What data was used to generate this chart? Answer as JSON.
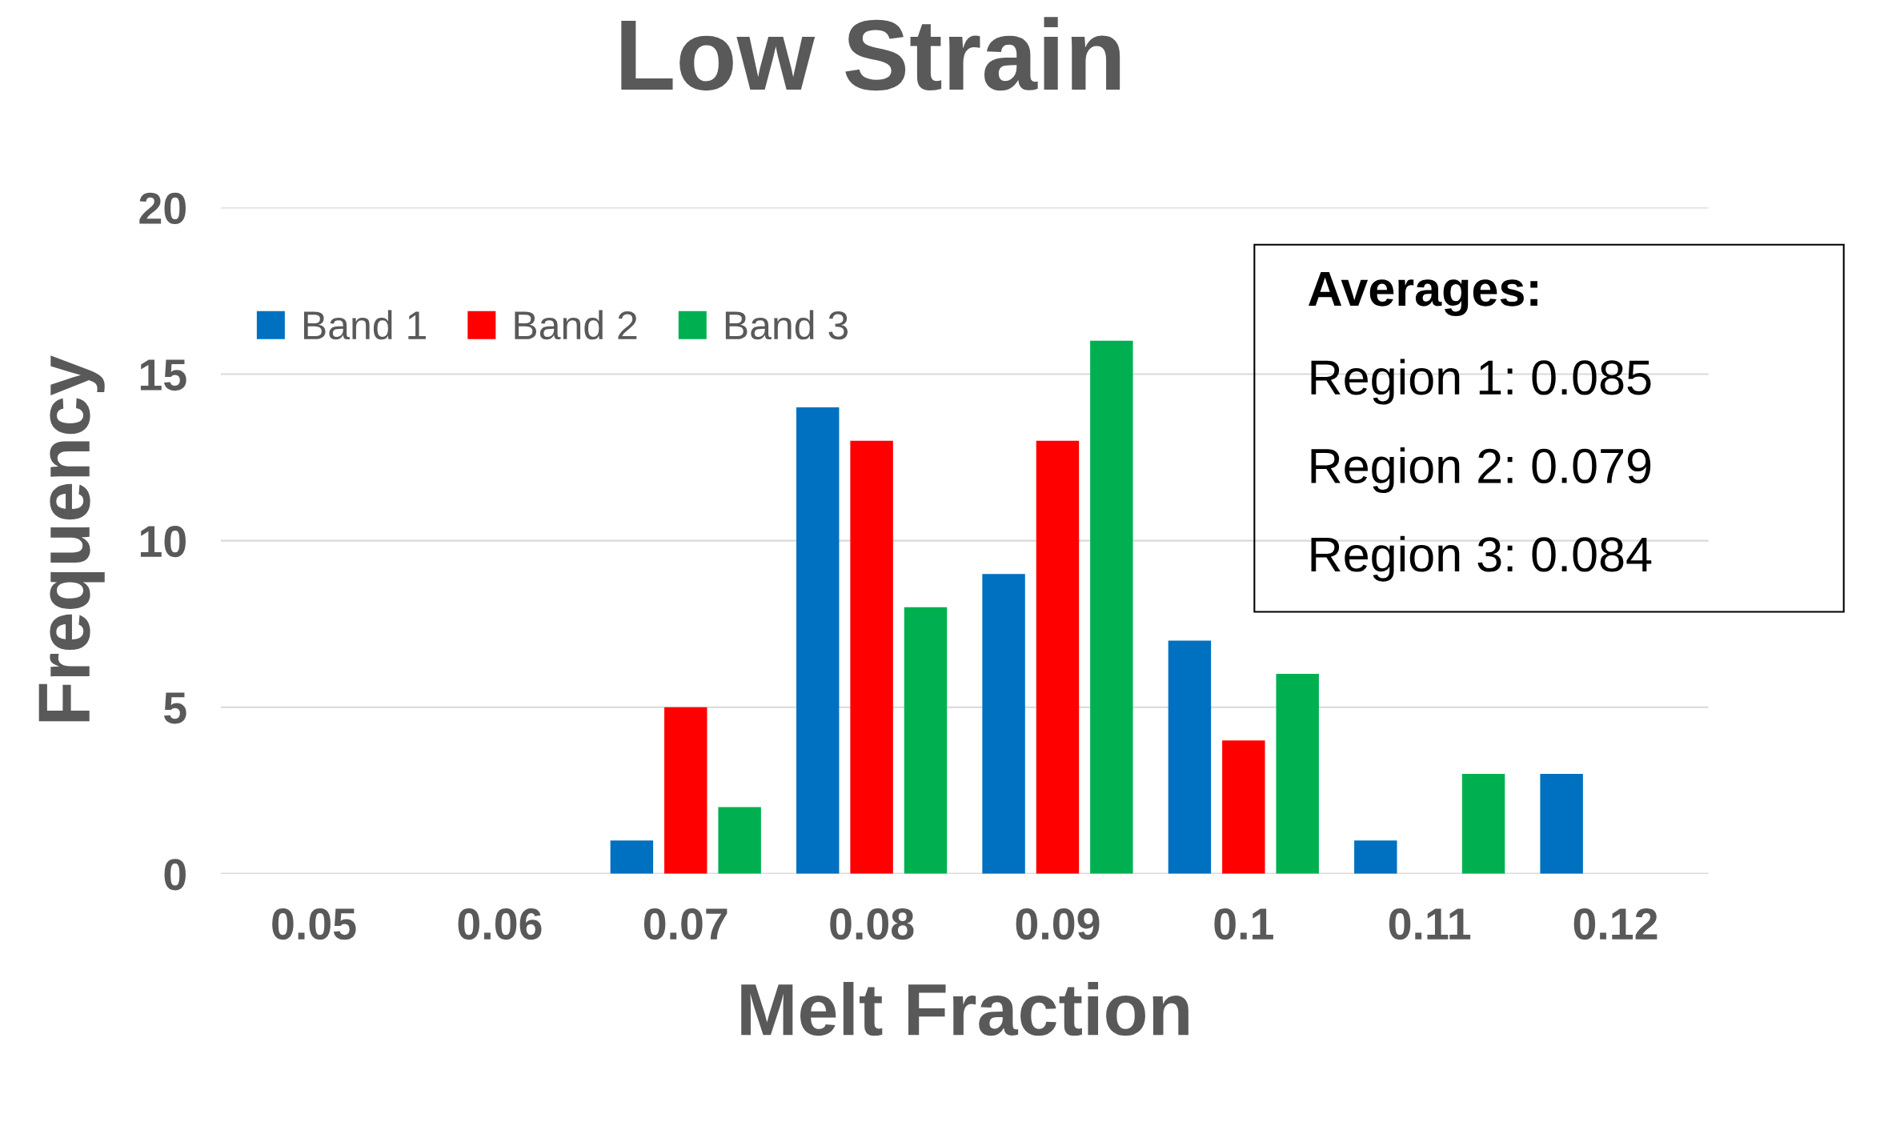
{
  "chart_data": {
    "type": "bar",
    "title": "Low Strain",
    "xlabel": "Melt Fraction",
    "ylabel": "Frequency",
    "categories": [
      "0.05",
      "0.06",
      "0.07",
      "0.08",
      "0.09",
      "0.1",
      "0.11",
      "0.12"
    ],
    "series": [
      {
        "name": "Band 1",
        "color": "#0070c0",
        "values": [
          0,
          0,
          1,
          14,
          9,
          7,
          1,
          3
        ]
      },
      {
        "name": "Band 2",
        "color": "#ff0000",
        "values": [
          0,
          0,
          5,
          13,
          13,
          4,
          0,
          0
        ]
      },
      {
        "name": "Band 3",
        "color": "#00b050",
        "values": [
          0,
          0,
          2,
          8,
          16,
          6,
          3,
          0
        ]
      }
    ],
    "ylim": [
      0,
      20
    ],
    "yticks": [
      0,
      5,
      10,
      15,
      20
    ],
    "grid": "y",
    "legend": "top left",
    "annotations": [
      "Averages:",
      "Region 1: 0.085",
      "Region 2: 0.079",
      "Region 3: 0.084"
    ]
  }
}
